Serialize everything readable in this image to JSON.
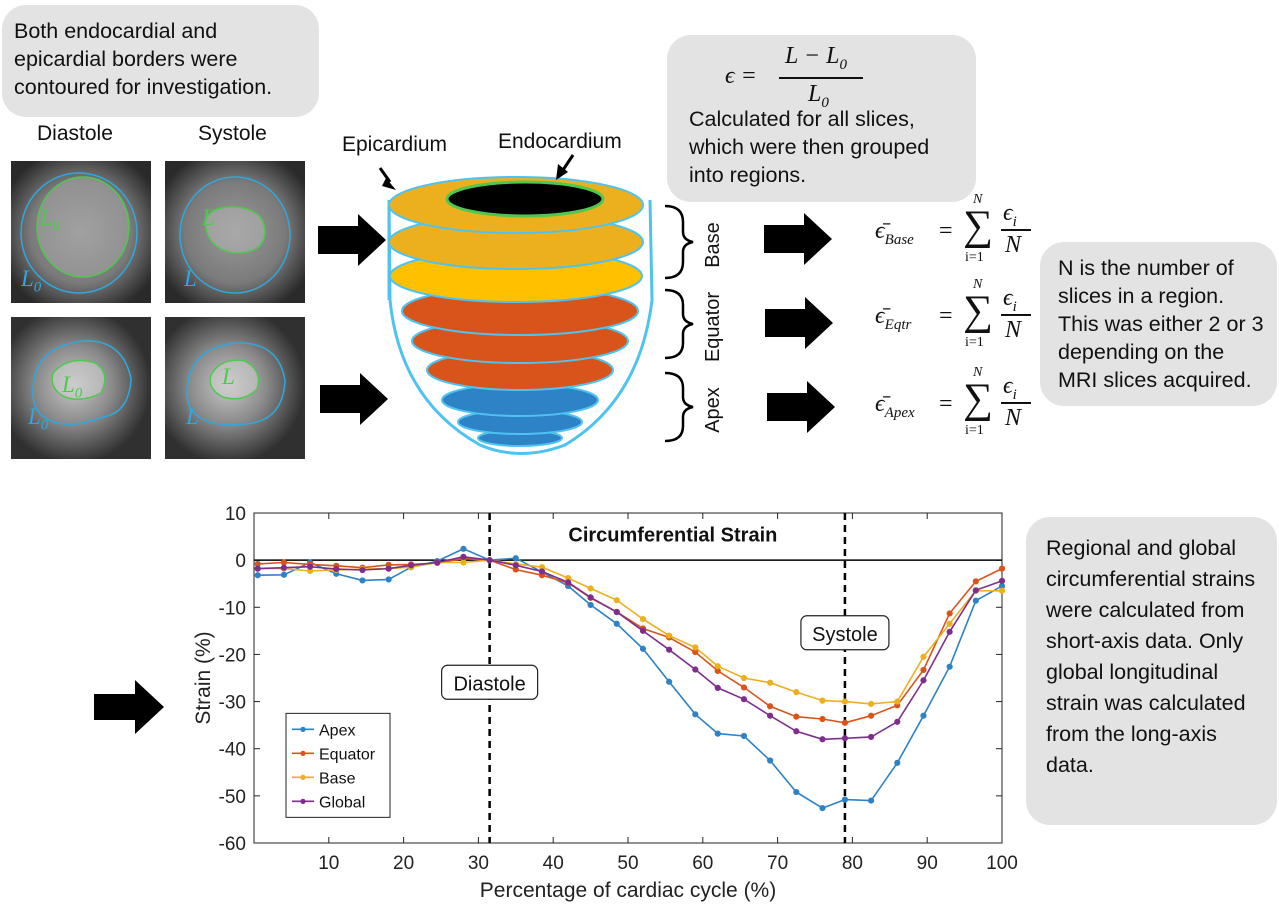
{
  "notes": {
    "contour": "Both endocardial and epicardial borders were contoured for investigation.",
    "strain_formula_lhs": "ϵ =",
    "strain_formula_num": "L − L",
    "strain_formula_num_sub": "0",
    "strain_formula_den": "L",
    "strain_formula_den_sub": "0",
    "slices": "Calculated for all slices, which were then grouped into regions.",
    "n_desc": "N is the number of slices in a region. This was either 2 or 3 depending on the MRI slices acquired.",
    "regional": "Regional and global circumferential strains were calculated from short-axis data. Only global longitudinal strain was calculated from the long-axis data."
  },
  "mri": {
    "diastole_label": "Diastole",
    "systole_label": "Systole",
    "inner_L0": "L",
    "inner_L0_sub": "0",
    "outer_L0": "L",
    "outer_L0_sub": "0",
    "inner_L": "L",
    "outer_L": "L"
  },
  "heart": {
    "epicardium": "Epicardium",
    "endocardium": "Endocardium",
    "base": "Base",
    "equator": "Equator",
    "apex": "Apex"
  },
  "equations": {
    "base_sub": "Base",
    "eqtr_sub": "Eqtr",
    "apex_sub": "Apex",
    "eps_bar": "ϵ̄",
    "equals": "=",
    "sum": "∑",
    "upper": "N",
    "lower": "i=1",
    "num": "ϵ",
    "num_sub": "i",
    "den": "N"
  },
  "colors": {
    "apex": "#2e82c6",
    "equator": "#d9541a",
    "base": "#ecb01f",
    "global": "#7e2f8e",
    "contour_green": "#4ec94e",
    "contour_blue": "#2fa8e0",
    "heart_outline": "#4fc3f0",
    "bubble": "#e3e3e3"
  },
  "chart_data": {
    "type": "line",
    "title": "Circumferential Strain",
    "xlabel": "Percentage of cardiac cycle (%)",
    "ylabel": "Strain (%)",
    "xlim": [
      0,
      100
    ],
    "ylim": [
      -60,
      10
    ],
    "xticks": [
      10,
      20,
      30,
      40,
      50,
      60,
      70,
      80,
      90,
      100
    ],
    "yticks": [
      10,
      0,
      -10,
      -20,
      -30,
      -40,
      -50,
      -60
    ],
    "x": [
      0.5,
      4,
      7.5,
      11,
      14.5,
      18,
      21,
      24.5,
      28,
      31.5,
      35,
      38.5,
      42,
      45,
      48.5,
      52,
      55.5,
      59,
      62,
      65.5,
      69,
      72.5,
      76,
      79,
      82.5,
      86,
      89.5,
      93,
      96.5,
      100
    ],
    "series": [
      {
        "name": "Apex",
        "color": "#2e82c6",
        "values": [
          -3.2,
          -3.1,
          -0.5,
          -2.9,
          -4.3,
          -4.1,
          -1.5,
          -0.2,
          2.4,
          0,
          0.4,
          -2.5,
          -5.5,
          -9.5,
          -13.5,
          -18.8,
          -25.8,
          -32.7,
          -36.8,
          -37.3,
          -42.5,
          -49.2,
          -52.6,
          -50.8,
          -51,
          -43,
          -33,
          -22.6,
          -8.6,
          -5.5
        ]
      },
      {
        "name": "Equator",
        "color": "#d9541a",
        "values": [
          -0.8,
          -0.5,
          -0.9,
          -1.2,
          -1.6,
          -1,
          -0.9,
          -0.6,
          0.3,
          0,
          -2,
          -3.2,
          -4.8,
          -8,
          -11,
          -14.5,
          -16.4,
          -19.5,
          -23.5,
          -27,
          -31,
          -33.2,
          -33.7,
          -34.5,
          -33,
          -30.8,
          -23.3,
          -11.3,
          -4.5,
          -1.8
        ]
      },
      {
        "name": "Base",
        "color": "#ecb01f",
        "values": [
          -1.8,
          -1.8,
          -2.3,
          -2.1,
          -1.9,
          -1.8,
          -1.5,
          -0.5,
          -0.5,
          0,
          -0.8,
          -1.5,
          -3.8,
          -6,
          -8.5,
          -12.5,
          -16,
          -18.5,
          -22.5,
          -25,
          -26,
          -28,
          -29.8,
          -30,
          -30.5,
          -30,
          -20.5,
          -13.5,
          -6.5,
          -6.5
        ]
      },
      {
        "name": "Global",
        "color": "#7e2f8e",
        "values": [
          -1.8,
          -1.6,
          -1.4,
          -1.9,
          -2.1,
          -1.8,
          -1.1,
          -0.5,
          0.7,
          0,
          -1.1,
          -2.4,
          -4.7,
          -7.9,
          -11,
          -15,
          -19,
          -23.2,
          -27.1,
          -29.5,
          -33,
          -36.3,
          -38,
          -37.8,
          -37.5,
          -34.3,
          -25.5,
          -15.2,
          -6.4,
          -4.4
        ]
      }
    ],
    "vlines": [
      {
        "x": 31.5,
        "label": "Diastole"
      },
      {
        "x": 79,
        "label": "Systole"
      }
    ],
    "legend": "bottom-left",
    "grid": false
  }
}
